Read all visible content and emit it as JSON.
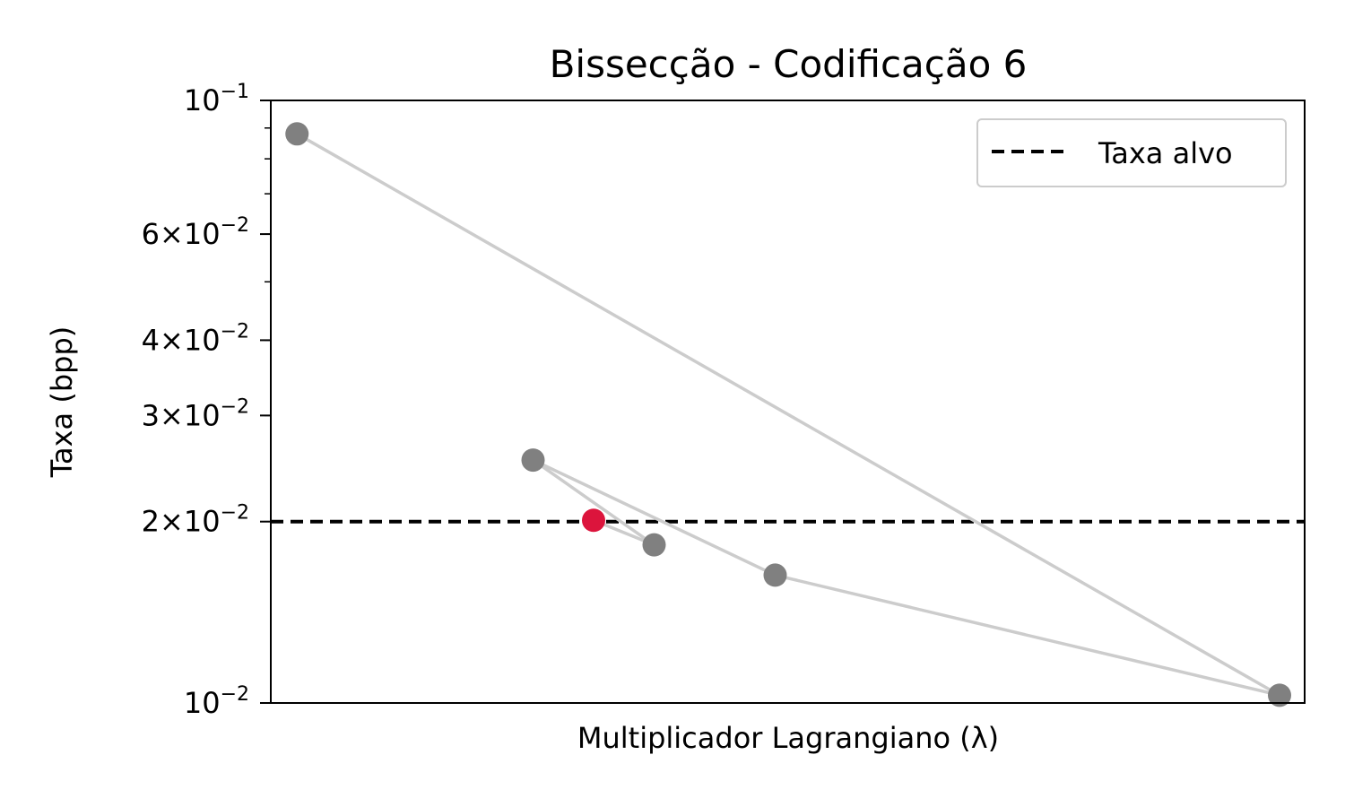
{
  "chart_data": {
    "type": "scatter",
    "title": "Bissecção - Codificação 6",
    "xlabel": "Multiplicador Lagrangiano (λ)",
    "ylabel": "Taxa (bpp)",
    "yscale": "log",
    "ylim": [
      0.01,
      0.1
    ],
    "x_ticks_shown": false,
    "y_ticks": [
      {
        "value": 0.1,
        "mantissa": "",
        "exponent": "−1"
      },
      {
        "value": 0.06,
        "mantissa": "6",
        "exponent": "−2"
      },
      {
        "value": 0.04,
        "mantissa": "4",
        "exponent": "−2"
      },
      {
        "value": 0.03,
        "mantissa": "3",
        "exponent": "−2"
      },
      {
        "value": 0.02,
        "mantissa": "2",
        "exponent": "−2"
      },
      {
        "value": 0.01,
        "mantissa": "",
        "exponent": "−2"
      }
    ],
    "series": [
      {
        "name": "",
        "line_color": "#cccccc",
        "marker_color": "#808080",
        "points": [
          {
            "x": 0.026,
            "y": 0.088
          },
          {
            "x": 1.0,
            "y": 0.0103
          },
          {
            "x": 0.5,
            "y": 0.0163
          },
          {
            "x": 0.26,
            "y": 0.0253
          },
          {
            "x": 0.38,
            "y": 0.0183
          }
        ]
      }
    ],
    "final_point": {
      "x": 0.32,
      "y": 0.0201,
      "color": "#dc143c"
    },
    "reference_line": {
      "y": 0.02,
      "label": "Taxa alvo",
      "color": "#000000",
      "style": "dashed"
    },
    "legend": {
      "position": "top-right",
      "entries": [
        "Taxa alvo"
      ]
    },
    "grid": false
  }
}
